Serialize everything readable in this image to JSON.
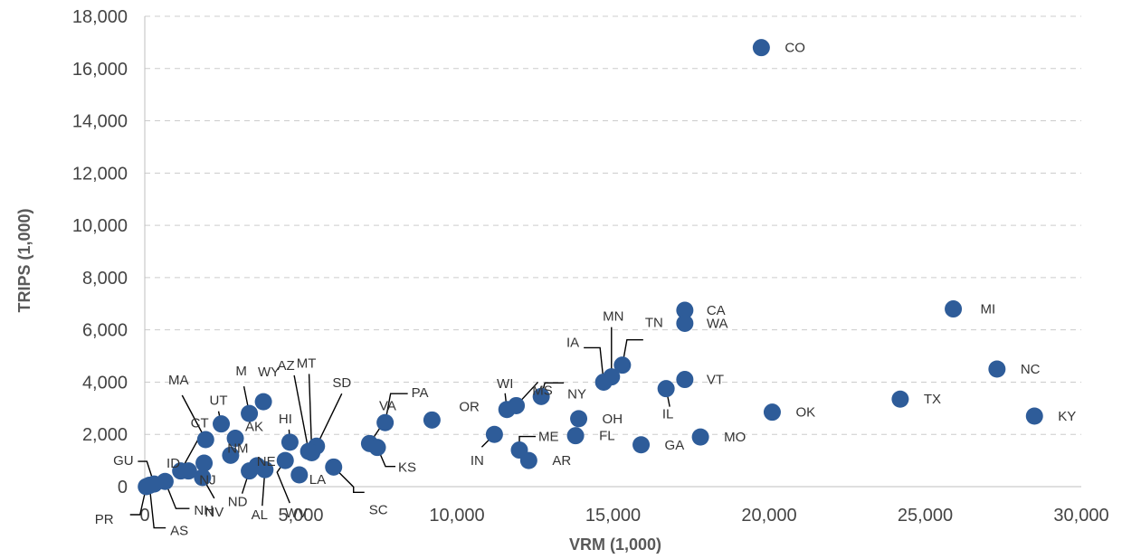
{
  "chart_data": {
    "type": "scatter",
    "xlabel": "VRM (1,000)",
    "ylabel": "TRIPS (1,000)",
    "xlim": [
      0,
      30000
    ],
    "ylim": [
      0,
      18000
    ],
    "x_ticks": [
      0,
      5000,
      10000,
      15000,
      20000,
      25000,
      30000
    ],
    "x_tick_labels": [
      "0",
      "5,000",
      "10,000",
      "15,000",
      "20,000",
      "25,000",
      "30,000"
    ],
    "y_ticks": [
      0,
      2000,
      4000,
      6000,
      8000,
      10000,
      12000,
      14000,
      16000,
      18000
    ],
    "y_tick_labels": [
      "0",
      "2,000",
      "4,000",
      "6,000",
      "8,000",
      "10,000",
      "12,000",
      "14,000",
      "16,000",
      "18,000"
    ],
    "grid": "horizontal",
    "marker_color": "#2e5c99",
    "points": [
      {
        "label": "CO",
        "x": 19750,
        "y": 16800
      },
      {
        "label": "MI",
        "x": 25900,
        "y": 6800
      },
      {
        "label": "CA",
        "x": 17300,
        "y": 6750
      },
      {
        "label": "WA",
        "x": 17300,
        "y": 6250
      },
      {
        "label": "NC",
        "x": 27300,
        "y": 4500
      },
      {
        "label": "TN",
        "x": 15300,
        "y": 4650
      },
      {
        "label": "MN",
        "x": 14950,
        "y": 4200
      },
      {
        "label": "IA",
        "x": 14700,
        "y": 4000
      },
      {
        "label": "VT",
        "x": 17300,
        "y": 4100
      },
      {
        "label": "IL",
        "x": 16700,
        "y": 3750
      },
      {
        "label": "NY",
        "x": 12700,
        "y": 3450
      },
      {
        "label": "MS",
        "x": 11900,
        "y": 3100
      },
      {
        "label": "WI",
        "x": 11600,
        "y": 2950
      },
      {
        "label": "TX",
        "x": 24200,
        "y": 3350
      },
      {
        "label": "OK",
        "x": 20100,
        "y": 2850
      },
      {
        "label": "KY",
        "x": 28500,
        "y": 2700
      },
      {
        "label": "OH",
        "x": 13900,
        "y": 2600
      },
      {
        "label": "OR",
        "x": 9200,
        "y": 2550
      },
      {
        "label": "FL",
        "x": 13800,
        "y": 1950
      },
      {
        "label": "MO",
        "x": 17800,
        "y": 1900
      },
      {
        "label": "GA",
        "x": 15900,
        "y": 1600
      },
      {
        "label": "IN",
        "x": 11200,
        "y": 2000
      },
      {
        "label": "ME",
        "x": 12000,
        "y": 1400
      },
      {
        "label": "AR",
        "x": 12300,
        "y": 1000
      },
      {
        "label": "PA",
        "x": 7700,
        "y": 2450
      },
      {
        "label": "VA",
        "x": 7200,
        "y": 1650
      },
      {
        "label": "KS",
        "x": 7450,
        "y": 1500
      },
      {
        "label": "SC",
        "x": 6050,
        "y": 750
      },
      {
        "label": "SD",
        "x": 5500,
        "y": 1550
      },
      {
        "label": "MT",
        "x": 5350,
        "y": 1300
      },
      {
        "label": "AZ",
        "x": 5250,
        "y": 1350
      },
      {
        "label": "HI",
        "x": 4650,
        "y": 1700
      },
      {
        "label": "LA",
        "x": 4950,
        "y": 450
      },
      {
        "label": "WV",
        "x": 4500,
        "y": 1000
      },
      {
        "label": "WY",
        "x": 3800,
        "y": 3250
      },
      {
        "label": "M",
        "x": 3350,
        "y": 2800
      },
      {
        "label": "UT",
        "x": 2450,
        "y": 2400
      },
      {
        "label": "AK",
        "x": 2900,
        "y": 1850
      },
      {
        "label": "MA",
        "x": 1950,
        "y": 1800
      },
      {
        "label": "NM",
        "x": 2750,
        "y": 1200
      },
      {
        "label": "ND",
        "x": 3350,
        "y": 600
      },
      {
        "label": "AL",
        "x": 3850,
        "y": 650
      },
      {
        "label": "NE",
        "x": 3600,
        "y": 800
      },
      {
        "label": "ID",
        "x": 1900,
        "y": 900
      },
      {
        "label": "NJ",
        "x": 1400,
        "y": 600
      },
      {
        "label": "NV",
        "x": 1850,
        "y": 350
      },
      {
        "label": "CT",
        "x": 1150,
        "y": 600
      },
      {
        "label": "NH",
        "x": 650,
        "y": 200
      },
      {
        "label": "GU",
        "x": 300,
        "y": 100
      },
      {
        "label": "AS",
        "x": 150,
        "y": 50
      },
      {
        "label": "PR",
        "x": 50,
        "y": 0
      }
    ]
  }
}
